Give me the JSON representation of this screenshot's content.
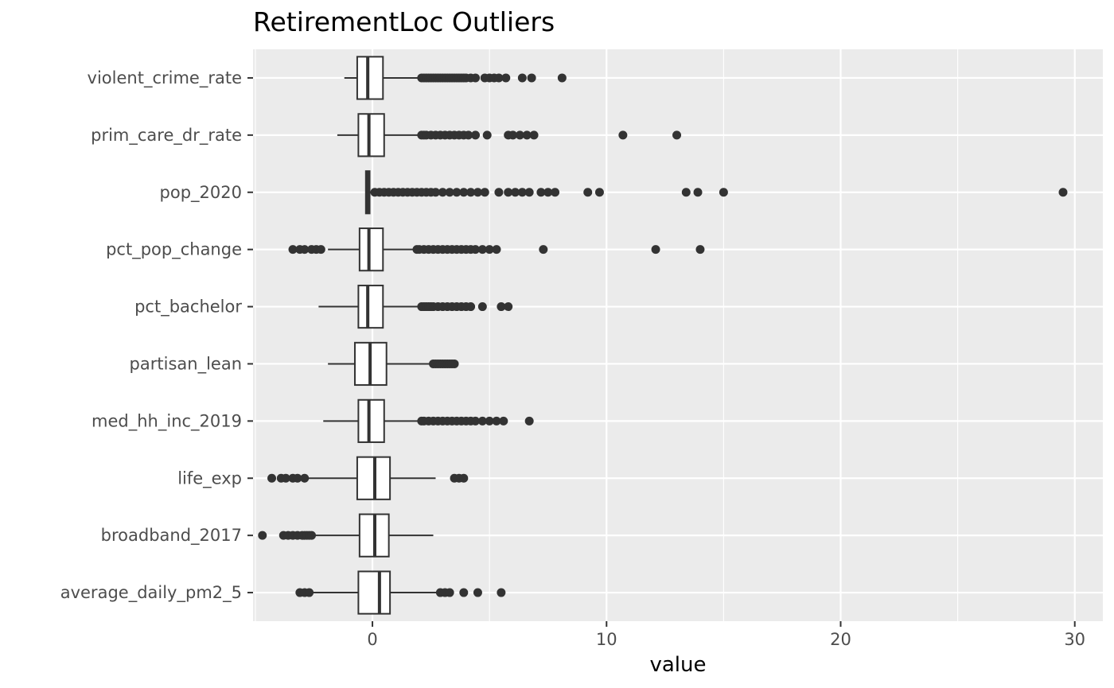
{
  "chart_data": {
    "type": "boxplot",
    "orientation": "horizontal",
    "title": "RetirementLoc Outliers",
    "xlabel": "value",
    "ylabel": "",
    "xlim": [
      -5.1,
      31.2
    ],
    "x_ticks": [
      0,
      10,
      20,
      30
    ],
    "grid": true,
    "legend": "none",
    "colors": {
      "panel": "#ebebeb",
      "grid": "#ffffff",
      "box_fill": "#ffffff",
      "stroke": "#333333"
    },
    "categories": [
      "violent_crime_rate",
      "prim_care_dr_rate",
      "pop_2020",
      "pct_pop_change",
      "pct_bachelor",
      "partisan_lean",
      "med_hh_inc_2019",
      "life_exp",
      "broadband_2017",
      "average_daily_pm2_5"
    ],
    "boxes": [
      {
        "name": "violent_crime_rate",
        "whisker_low": -1.2,
        "q1": -0.65,
        "median": -0.2,
        "q3": 0.45,
        "whisker_high": 2.1,
        "outliers": [
          2.1,
          2.2,
          2.3,
          2.4,
          2.5,
          2.6,
          2.7,
          2.8,
          2.9,
          3.0,
          3.1,
          3.2,
          3.3,
          3.4,
          3.5,
          3.6,
          3.7,
          3.8,
          3.9,
          4.0,
          4.2,
          4.4,
          4.8,
          5.0,
          5.2,
          5.4,
          5.7,
          6.4,
          6.8,
          8.1
        ]
      },
      {
        "name": "prim_care_dr_rate",
        "whisker_low": -1.5,
        "q1": -0.6,
        "median": -0.15,
        "q3": 0.5,
        "whisker_high": 2.1,
        "outliers": [
          2.1,
          2.2,
          2.3,
          2.5,
          2.7,
          2.9,
          3.1,
          3.3,
          3.5,
          3.7,
          3.9,
          4.1,
          4.4,
          4.9,
          5.8,
          6.0,
          6.3,
          6.6,
          6.9,
          10.7,
          13.0
        ]
      },
      {
        "name": "pop_2020",
        "whisker_low": -0.3,
        "q1": -0.28,
        "median": -0.2,
        "q3": -0.12,
        "whisker_high": 0.05,
        "outliers": [
          0.1,
          0.3,
          0.5,
          0.7,
          0.9,
          1.1,
          1.3,
          1.5,
          1.7,
          1.9,
          2.1,
          2.3,
          2.5,
          2.7,
          3.0,
          3.3,
          3.6,
          3.9,
          4.2,
          4.5,
          4.8,
          5.4,
          5.8,
          6.1,
          6.4,
          6.7,
          7.2,
          7.5,
          7.8,
          9.2,
          9.7,
          13.4,
          13.9,
          15.0,
          29.5
        ]
      },
      {
        "name": "pct_pop_change",
        "whisker_low": -1.9,
        "q1": -0.55,
        "median": -0.15,
        "q3": 0.45,
        "whisker_high": 1.9,
        "outliers": [
          -3.4,
          -3.1,
          -2.9,
          -2.6,
          -2.4,
          -2.2,
          1.9,
          2.0,
          2.2,
          2.4,
          2.6,
          2.8,
          3.0,
          3.2,
          3.4,
          3.6,
          3.8,
          4.0,
          4.2,
          4.4,
          4.7,
          5.0,
          5.3,
          7.3,
          12.1,
          14.0
        ]
      },
      {
        "name": "pct_bachelor",
        "whisker_low": -2.3,
        "q1": -0.6,
        "median": -0.2,
        "q3": 0.45,
        "whisker_high": 2.1,
        "outliers": [
          2.1,
          2.2,
          2.3,
          2.4,
          2.5,
          2.6,
          2.8,
          3.0,
          3.2,
          3.4,
          3.6,
          3.8,
          4.0,
          4.2,
          4.7,
          5.5,
          5.8
        ]
      },
      {
        "name": "partisan_lean",
        "whisker_low": -1.9,
        "q1": -0.75,
        "median": -0.1,
        "q3": 0.6,
        "whisker_high": 2.6,
        "outliers": [
          2.6,
          2.7,
          2.8,
          2.9,
          3.0,
          3.1,
          3.2,
          3.3,
          3.4,
          3.5
        ]
      },
      {
        "name": "med_hh_inc_2019",
        "whisker_low": -2.1,
        "q1": -0.6,
        "median": -0.15,
        "q3": 0.5,
        "whisker_high": 2.1,
        "outliers": [
          2.1,
          2.2,
          2.4,
          2.6,
          2.8,
          3.0,
          3.2,
          3.4,
          3.6,
          3.8,
          4.0,
          4.2,
          4.4,
          4.7,
          5.0,
          5.3,
          5.6,
          6.7
        ]
      },
      {
        "name": "life_exp",
        "whisker_low": -3.1,
        "q1": -0.65,
        "median": 0.1,
        "q3": 0.75,
        "whisker_high": 2.7,
        "outliers": [
          -4.3,
          -3.9,
          -3.7,
          -3.4,
          -3.2,
          -2.9,
          3.5,
          3.7,
          3.9
        ]
      },
      {
        "name": "broadband_2017",
        "whisker_low": -2.6,
        "q1": -0.55,
        "median": 0.1,
        "q3": 0.7,
        "whisker_high": 2.6,
        "outliers": [
          -4.7,
          -3.8,
          -3.6,
          -3.4,
          -3.2,
          -3.0,
          -2.9,
          -2.8,
          -2.7,
          -2.6
        ]
      },
      {
        "name": "average_daily_pm2_5",
        "whisker_low": -2.9,
        "q1": -0.6,
        "median": 0.3,
        "q3": 0.75,
        "whisker_high": 2.8,
        "outliers": [
          -3.1,
          -2.9,
          -2.7,
          2.9,
          3.1,
          3.3,
          3.9,
          4.5,
          5.5
        ]
      }
    ]
  }
}
